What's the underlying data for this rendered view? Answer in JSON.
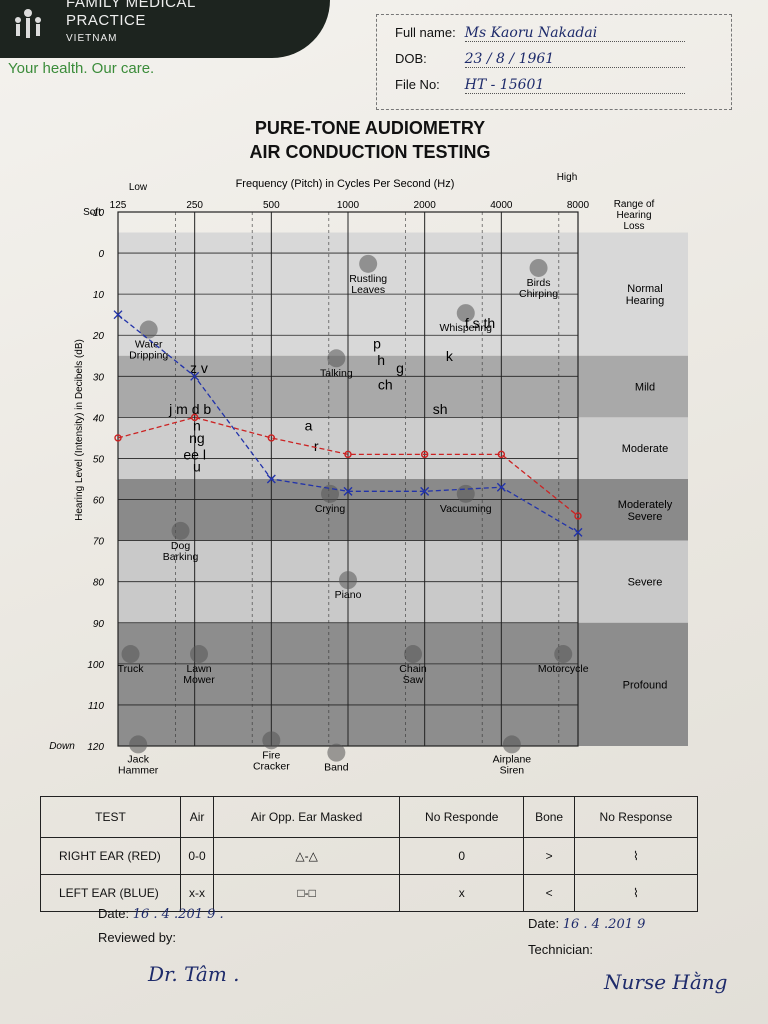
{
  "header": {
    "brand_line1": "FAMILY MEDICAL",
    "brand_line2": "PRACTICE",
    "brand_line3": "VIETNAM",
    "tagline": "Your health. Our care."
  },
  "patient": {
    "full_name_label": "Full name:",
    "full_name_value": "Ms Kaoru Nakadai",
    "dob_label": "DOB:",
    "dob_value": "23 / 8 / 1961",
    "file_label": "File No:",
    "file_value": "HT - 15601"
  },
  "title_line1": "PURE-TONE AUDIOMETRY",
  "title_line2": "AIR CONDUCTION TESTING",
  "chart_data": {
    "type": "line",
    "xlabel": "Frequency (Pitch) in Cycles Per Second (Hz)",
    "ylabel": "Hearing Level (Intensity) in Decibels (dB)",
    "x_low_label": "Low",
    "x_high_label": "High",
    "y_top_label": "Soft",
    "y_bottom_label": "Down",
    "range_header": "Range of Hearing Loss",
    "x": [
      125,
      250,
      500,
      1000,
      2000,
      4000,
      8000
    ],
    "x_labels": [
      "125",
      "250",
      "500",
      "1000",
      "2000",
      "4000",
      "8000"
    ],
    "y_ticks": [
      -10,
      0,
      10,
      20,
      30,
      40,
      50,
      60,
      70,
      80,
      90,
      100,
      110,
      120
    ],
    "ylim": [
      -10,
      120
    ],
    "grid": true,
    "series": [
      {
        "color": "#cc2222",
        "marker": "o",
        "values": [
          45,
          40,
          45,
          49,
          49,
          49,
          64
        ]
      },
      {
        "color": "#2233aa",
        "marker": "x",
        "values": [
          15,
          30,
          55,
          58,
          58,
          57,
          68
        ]
      }
    ],
    "bands": [
      {
        "label": "Normal Hearing",
        "from": -10,
        "to": 25,
        "shade": "#d8d8d8"
      },
      {
        "label": "Mild",
        "from": 25,
        "to": 40,
        "shade": "#a9a9a9"
      },
      {
        "label": "Moderate",
        "from": 40,
        "to": 55,
        "shade": "#cdcdcd"
      },
      {
        "label": "Moderately Severe",
        "from": 55,
        "to": 70,
        "shade": "#8a8a8a"
      },
      {
        "label": "Severe",
        "from": 70,
        "to": 90,
        "shade": "#c9c9c9"
      },
      {
        "label": "Profound",
        "from": 90,
        "to": 120,
        "shade": "#8d8d8d"
      }
    ],
    "sounds": [
      {
        "label": "Rustling Leaves",
        "x": 1200,
        "y": 7
      },
      {
        "label": "Birds Chirping",
        "x": 5600,
        "y": 8
      },
      {
        "label": "Water Dripping",
        "x": 165,
        "y": 23
      },
      {
        "label": "Whispering",
        "x": 2900,
        "y": 19
      },
      {
        "label": "Talking",
        "x": 900,
        "y": 30
      },
      {
        "label": "Crying",
        "x": 850,
        "y": 63
      },
      {
        "label": "Vacuuming",
        "x": 2900,
        "y": 63
      },
      {
        "label": "Dog Barking",
        "x": 220,
        "y": 72
      },
      {
        "label": "Piano",
        "x": 1000,
        "y": 84
      },
      {
        "label": "Truck",
        "x": 140,
        "y": 102
      },
      {
        "label": "Lawn Mower",
        "x": 260,
        "y": 102
      },
      {
        "label": "Chain Saw",
        "x": 1800,
        "y": 102
      },
      {
        "label": "Motorcycle",
        "x": 7000,
        "y": 102
      },
      {
        "label": "Jack Hammer",
        "x": 150,
        "y": 124
      },
      {
        "label": "Fire Cracker",
        "x": 500,
        "y": 123
      },
      {
        "label": "Band",
        "x": 900,
        "y": 126
      },
      {
        "label": "Airplane Siren",
        "x": 4400,
        "y": 124
      }
    ],
    "phonemes": [
      {
        "label": "z v",
        "x": 260,
        "y": 28
      },
      {
        "label": "j m d b",
        "x": 240,
        "y": 38
      },
      {
        "label": "n",
        "x": 255,
        "y": 42
      },
      {
        "label": "ng",
        "x": 255,
        "y": 45
      },
      {
        "label": "ee l",
        "x": 250,
        "y": 49
      },
      {
        "label": "u",
        "x": 255,
        "y": 52
      },
      {
        "label": "a",
        "x": 700,
        "y": 42
      },
      {
        "label": "r",
        "x": 750,
        "y": 47
      },
      {
        "label": "p",
        "x": 1300,
        "y": 22
      },
      {
        "label": "h",
        "x": 1350,
        "y": 26
      },
      {
        "label": "g",
        "x": 1600,
        "y": 28
      },
      {
        "label": "ch",
        "x": 1400,
        "y": 32
      },
      {
        "label": "sh",
        "x": 2300,
        "y": 38
      },
      {
        "label": "k",
        "x": 2500,
        "y": 25
      },
      {
        "label": "f s th",
        "x": 3300,
        "y": 17
      }
    ]
  },
  "legend": {
    "headers": [
      "TEST",
      "Air",
      "Air Opp. Ear Masked",
      "No Responde",
      "Bone",
      "No Response"
    ],
    "rows": [
      {
        "test": "RIGHT EAR (RED)",
        "air": "0-0",
        "masked": "△-△",
        "noresp": "0",
        "bone": ">",
        "noresp2": "⌇"
      },
      {
        "test": "LEFT EAR (BLUE)",
        "air": "x-x",
        "masked": "□-□",
        "noresp": "x",
        "bone": "<",
        "noresp2": "⌇"
      }
    ]
  },
  "footer": {
    "date_label": "Date:",
    "date_left_value": "16 . 4 .201 9 .",
    "date_right_value": "16 . 4 .201 9",
    "reviewed_label": "Reviewed by:",
    "reviewed_sig": "Dr. Tâm .",
    "technician_label": "Technician:",
    "technician_sig": "Nurse Hằng"
  }
}
